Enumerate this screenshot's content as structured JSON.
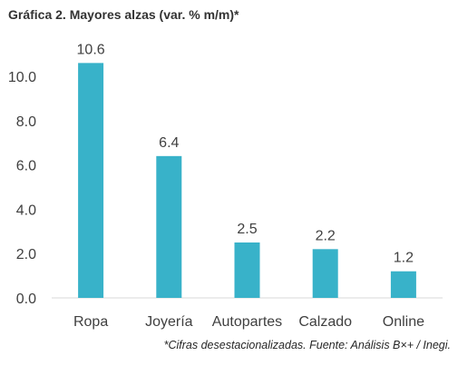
{
  "chart_data": {
    "type": "bar",
    "title": "Gráfica 2. Mayores alzas (var. % m/m)*",
    "categories": [
      "Ropa",
      "Joyería",
      "Autopartes",
      "Calzado",
      "Online"
    ],
    "values": [
      10.6,
      6.4,
      2.5,
      2.2,
      1.2
    ],
    "data_labels": [
      "10.6",
      "6.4",
      "2.5",
      "2.2",
      "1.2"
    ],
    "yticks": [
      "0.0",
      "2.0",
      "4.0",
      "6.0",
      "8.0",
      "10.0"
    ],
    "ytick_values": [
      0,
      2,
      4,
      6,
      8,
      10
    ],
    "ylim": [
      0,
      10.6
    ],
    "xlabel": "",
    "ylabel": "",
    "grid": false,
    "bar_color": "#38B2C9",
    "footnote": "*Cifras desestacionalizadas. Fuente: Análisis B×+ / Inegi."
  }
}
